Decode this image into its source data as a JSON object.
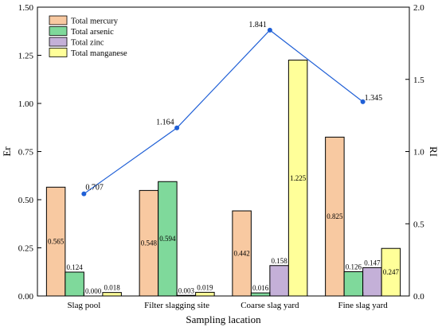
{
  "chart_data": {
    "type": "bar",
    "xlabel": "Sampling lacation",
    "ylabel": "Er",
    "y2label": "RI",
    "categories": [
      "Slag pool",
      "Filter slagging site",
      "Coarse slag yard",
      "Fine slag yard"
    ],
    "ylim": [
      0,
      1.5
    ],
    "yticks": [
      "0.00",
      "0.25",
      "0.50",
      "0.75",
      "1.00",
      "1.25",
      "1.50"
    ],
    "y2lim": [
      0,
      2.0
    ],
    "y2ticks": [
      "0.0",
      "0.5",
      "1.0",
      "1.5",
      "2.0"
    ],
    "legend_position": "top-left",
    "series": [
      {
        "name": "Total mercury",
        "color": "#f8c9a1",
        "values": [
          0.565,
          0.548,
          0.442,
          0.825
        ],
        "labels": [
          "0.565",
          "0.548",
          "0.442",
          "0.825"
        ]
      },
      {
        "name": "Total arsenic",
        "color": "#7fd99b",
        "values": [
          0.124,
          0.594,
          0.016,
          0.126
        ],
        "labels": [
          "0.124",
          "0.594",
          "0.016",
          "0.126"
        ]
      },
      {
        "name": "Total zinc",
        "color": "#c4b0d8",
        "values": [
          0.0,
          0.003,
          0.158,
          0.147
        ],
        "labels": [
          "0.000",
          "0.003",
          "0.158",
          "0.147"
        ]
      },
      {
        "name": "Total manganese",
        "color": "#ffff99",
        "values": [
          0.018,
          0.019,
          1.225,
          0.247
        ],
        "labels": [
          "0.018",
          "0.019",
          "1.225",
          "0.247"
        ]
      }
    ],
    "line_series": {
      "name": "RI",
      "color": "#1f5fd6",
      "axis": "right",
      "values": [
        0.707,
        1.164,
        1.841,
        1.345
      ],
      "labels": [
        "0.707",
        "1.164",
        "1.841",
        "1.345"
      ]
    }
  }
}
